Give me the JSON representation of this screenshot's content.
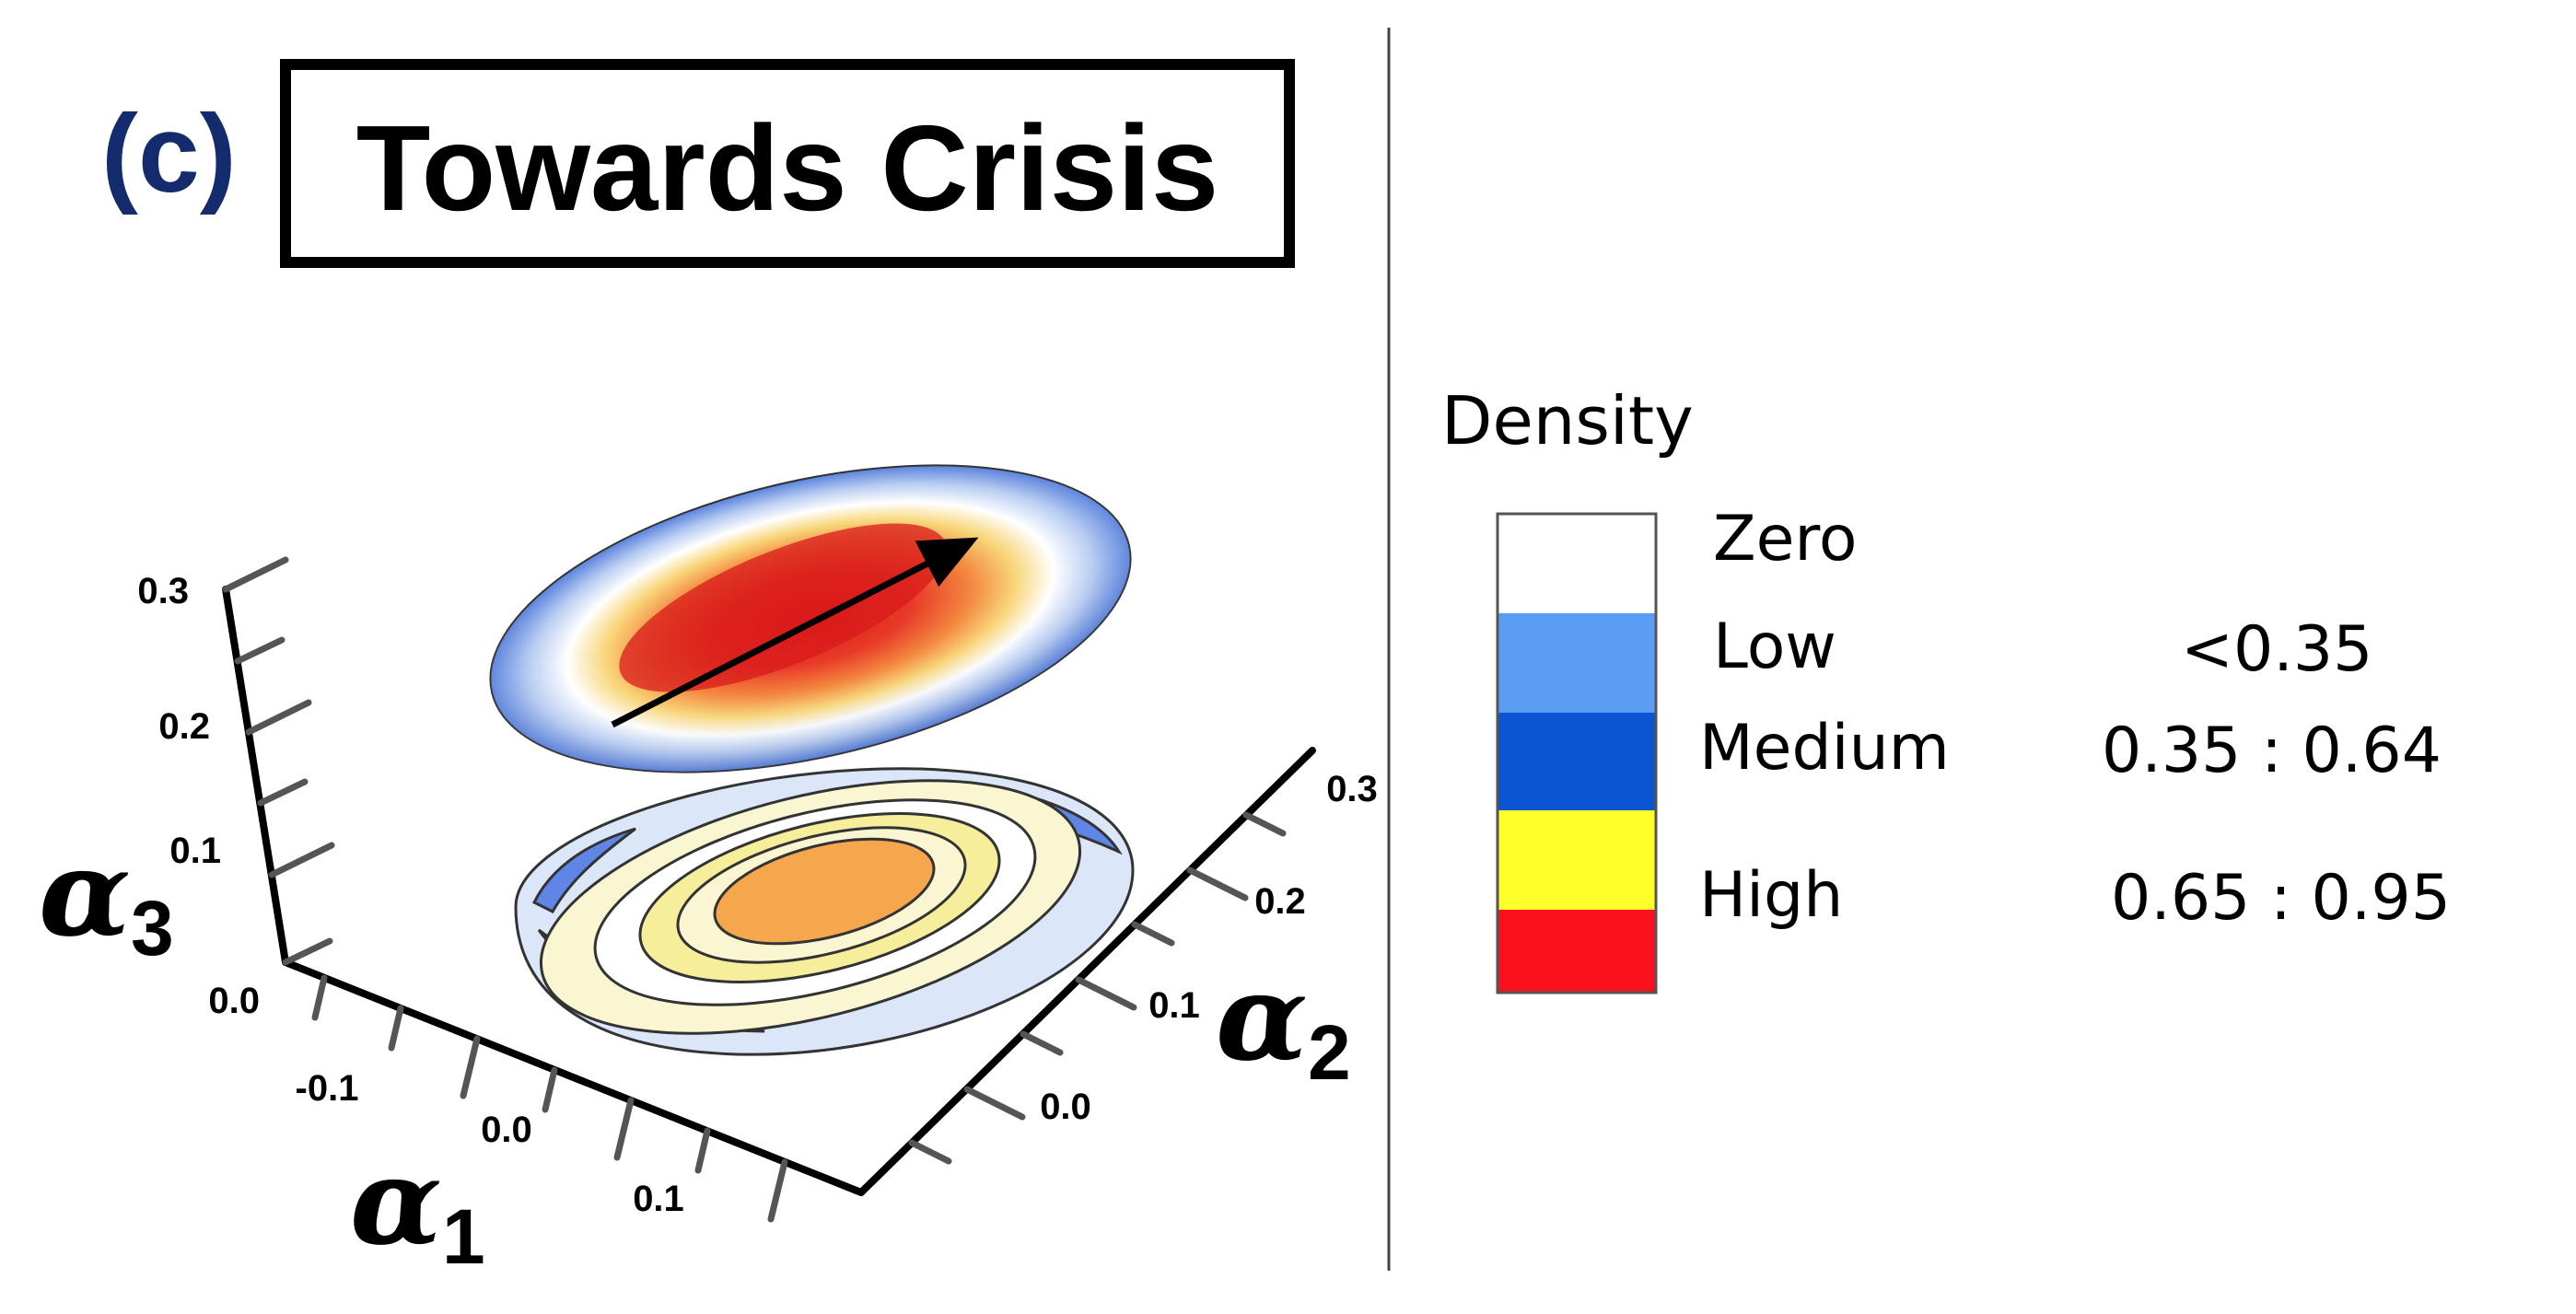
{
  "panel": {
    "label": "(c)",
    "title": "Towards Crisis"
  },
  "axes": {
    "a1": {
      "symbol": "α",
      "subscript": "1",
      "ticks": [
        "-0.1",
        "0.0",
        "0.1"
      ]
    },
    "a2": {
      "symbol": "α",
      "subscript": "2",
      "ticks": [
        "0.0",
        "0.1",
        "0.2",
        "0.3"
      ]
    },
    "a3": {
      "symbol": "α",
      "subscript": "3",
      "ticks": [
        "0.0",
        "0.1",
        "0.2",
        "0.3"
      ]
    }
  },
  "legend": {
    "title": "Density",
    "entries": [
      {
        "label": "Zero",
        "range": "",
        "color": "#ffffff"
      },
      {
        "label": "Low",
        "range": "<0.35",
        "color": "#5a9df5"
      },
      {
        "label": "Medium",
        "range": "0.35 : 0.64",
        "color": "#0c55d2"
      },
      {
        "label": "High",
        "range": "0.65 : 0.95",
        "color": "#ffff2a"
      },
      {
        "label": "",
        "range": "",
        "color": "#fc101e"
      }
    ]
  },
  "colors": {
    "label_navy": "#142c6e",
    "divider": "#444444",
    "contour_orange": "#f6a64d",
    "contour_yellow": "#f6ee9a",
    "contour_lightyellow": "#faf6d2",
    "contour_pale": "#dbe6f8",
    "contour_blue": "#5f86e6",
    "disc_red": "#dc1f1f",
    "disc_orange": "#f28a3c",
    "disc_yellow": "#f9d776",
    "disc_blue": "#5a82dd"
  }
}
